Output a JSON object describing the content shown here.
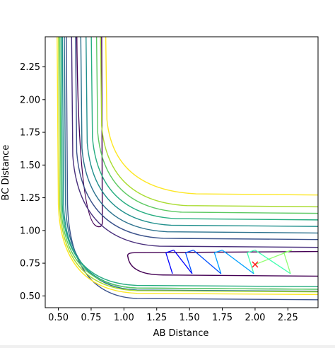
{
  "chart_data": {
    "type": "contour",
    "title": "",
    "xlabel": "AB Distance",
    "ylabel": "BC Distance",
    "xlim": [
      0.4,
      2.48
    ],
    "ylim": [
      0.41,
      2.48
    ],
    "x_ticks": [
      0.5,
      0.75,
      1.0,
      1.25,
      1.5,
      1.75,
      2.0,
      2.25
    ],
    "x_tick_labels": [
      "0.50",
      "0.75",
      "1.00",
      "1.25",
      "1.50",
      "1.75",
      "2.00",
      "2.25"
    ],
    "y_ticks": [
      0.5,
      0.75,
      1.0,
      1.25,
      1.5,
      1.75,
      2.0,
      2.25
    ],
    "y_tick_labels": [
      "0.50",
      "0.75",
      "1.00",
      "1.25",
      "1.50",
      "1.75",
      "2.00",
      "2.25"
    ],
    "grid": false,
    "contours": [
      {
        "color": "#440154",
        "shape": "loop",
        "y_asym": 0.82,
        "x_asym": 0.83,
        "tip": [
          0.86,
          1.03
        ],
        "channel_entry": [
          1.03,
          0.83
        ],
        "lower_y": 0.66,
        "lower_corner": [
          1.15,
          0.66
        ]
      },
      {
        "color": "#3b528b",
        "shape": "L",
        "x_asym": 0.56,
        "y_asym": 0.47,
        "corner": [
          0.93,
          0.91
        ]
      },
      {
        "color": "#2c728e",
        "shape": "L",
        "x_asym": 0.545,
        "y_asym": 0.535,
        "corner": [
          0.98,
          0.99
        ]
      },
      {
        "color": "#21908d",
        "shape": "L",
        "x_asym": 0.53,
        "y_asym": 0.55,
        "corner": [
          1.03,
          1.04
        ]
      },
      {
        "color": "#27ad81",
        "shape": "L",
        "x_asym": 0.52,
        "y_asym": 0.57,
        "corner": [
          1.07,
          1.07
        ]
      },
      {
        "color": "#5dc963",
        "shape": "L",
        "x_asym": 0.51,
        "y_asym": 0.55,
        "corner": [
          1.1,
          1.12
        ]
      },
      {
        "color": "#aadc32",
        "shape": "L",
        "x_asym": 0.5,
        "y_asym": 0.53,
        "corner": [
          1.12,
          1.17
        ]
      },
      {
        "color": "#fde725",
        "shape": "L",
        "x_asym": 0.49,
        "y_asym": 0.51,
        "corner": [
          1.16,
          1.22
        ]
      }
    ],
    "outer_contours": [
      {
        "color": "#472d7b",
        "x_asym": 0.6,
        "y_asym": 0.63,
        "corner": [
          1.27,
          1.22
        ],
        "right_y": 0.87
      },
      {
        "color": "#3b528b",
        "x_asym": 0.63,
        "y_asym": 0.66,
        "corner": [
          1.3,
          1.25
        ],
        "right_y": 0.93
      },
      {
        "color": "#2c728e",
        "x_asym": 0.67,
        "y_asym": 0.69,
        "corner": [
          1.33,
          1.28
        ],
        "right_y": 0.98
      },
      {
        "color": "#21908d",
        "x_asym": 0.71,
        "y_asym": 0.72,
        "corner": [
          1.36,
          1.32
        ],
        "right_y": 1.03
      },
      {
        "color": "#27ad81",
        "x_asym": 0.75,
        "y_asym": 0.75,
        "corner": [
          1.4,
          1.36
        ],
        "right_y": 1.08
      },
      {
        "color": "#5dc963",
        "x_asym": 0.79,
        "y_asym": 0.79,
        "corner": [
          1.44,
          1.4
        ],
        "right_y": 1.13
      },
      {
        "color": "#aadc32",
        "x_asym": 0.82,
        "y_asym": 0.82,
        "corner": [
          1.48,
          1.45
        ],
        "right_y": 1.18
      },
      {
        "color": "#fde725",
        "x_asym": 0.86,
        "y_asym": 0.86,
        "corner": [
          1.55,
          1.5
        ],
        "right_y": 1.27
      }
    ],
    "trajectory": {
      "colors": [
        "#0000ff",
        "#0050ff",
        "#00a0ff",
        "#40ffb0",
        "#90ff70"
      ],
      "start": [
        2.0,
        0.74
      ],
      "oscillation_x": [
        1.35,
        1.5,
        1.72,
        1.97,
        2.25
      ],
      "y_range": [
        0.67,
        0.85
      ]
    },
    "marker": {
      "x": 2.0,
      "y": 0.74,
      "symbol": "x",
      "color": "#ff0000"
    }
  }
}
